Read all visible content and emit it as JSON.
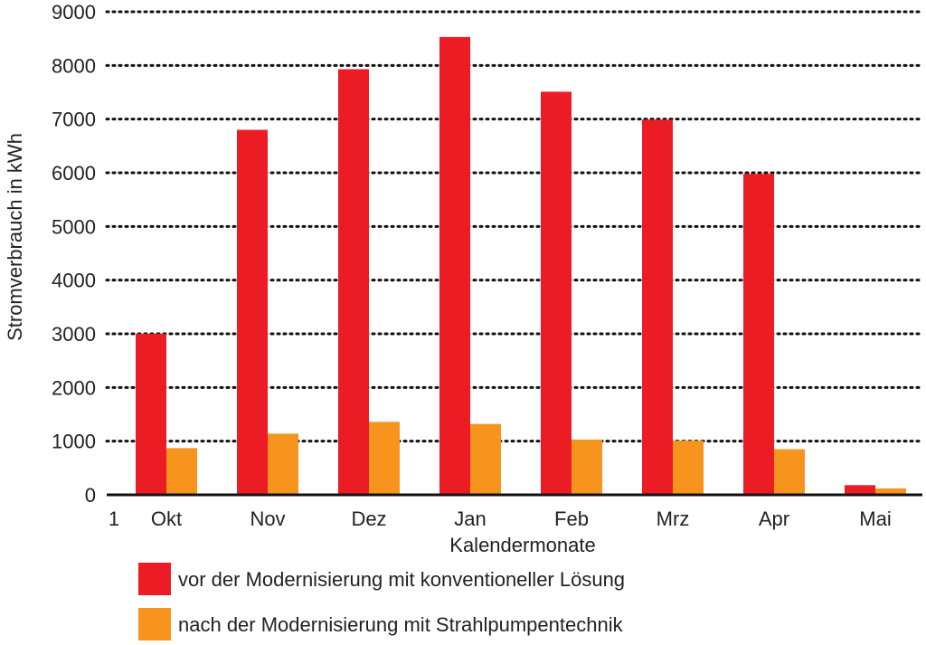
{
  "chart_data": {
    "type": "bar",
    "categories": [
      "Okt",
      "Nov",
      "Dez",
      "Jan",
      "Feb",
      "Mrz",
      "Apr",
      "Mai"
    ],
    "series": [
      {
        "name": "vor der Modernisierung mit konventioneller Lösung",
        "color": "#ec1c24",
        "values": [
          3000,
          6800,
          7930,
          8530,
          7510,
          6990,
          5980,
          180
        ]
      },
      {
        "name": "nach der Modernisierung mit Strahlpumpentechnik",
        "color": "#f7941d",
        "values": [
          870,
          1140,
          1360,
          1320,
          1030,
          1010,
          850,
          120
        ]
      }
    ],
    "xlabel": "Kalendermonate",
    "ylabel": "Stromverbrauch in kWh",
    "ylim": [
      0,
      9000
    ],
    "yticks": [
      0,
      1000,
      2000,
      3000,
      4000,
      5000,
      6000,
      7000,
      8000,
      9000
    ],
    "x_origin_label": "1",
    "grid": "dotted horizontal",
    "legend_position": "bottom"
  }
}
